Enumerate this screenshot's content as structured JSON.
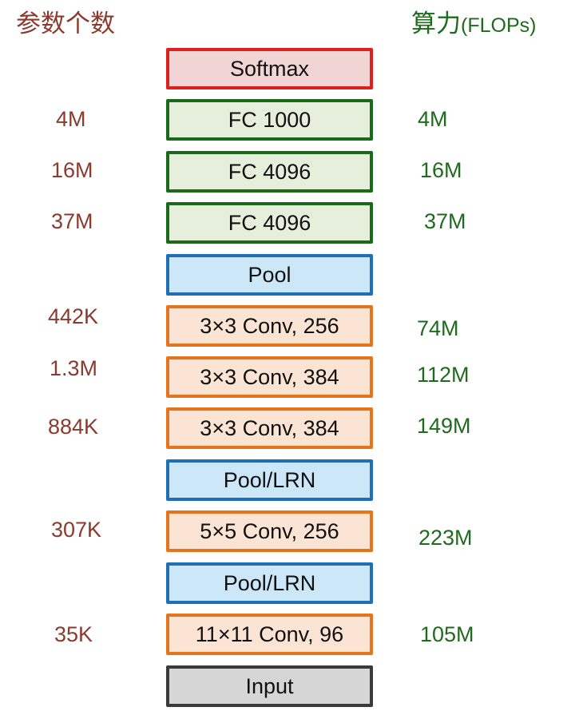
{
  "headers": {
    "params": "参数个数",
    "flops_main": "算力",
    "flops_sub": "(FLOPs)"
  },
  "layers": [
    {
      "label": "Softmax",
      "type": "softmax",
      "params": "",
      "flops": ""
    },
    {
      "label": "FC 1000",
      "type": "fc",
      "params": "4M",
      "flops": "4M"
    },
    {
      "label": "FC 4096",
      "type": "fc",
      "params": "16M",
      "flops": "16M"
    },
    {
      "label": "FC 4096",
      "type": "fc",
      "params": "37M",
      "flops": "37M"
    },
    {
      "label": "Pool",
      "type": "pool",
      "params": "",
      "flops": ""
    },
    {
      "label": "3×3 Conv, 256",
      "type": "conv",
      "params": "442K",
      "flops": "74M"
    },
    {
      "label": "3×3 Conv, 384",
      "type": "conv",
      "params": "1.3M",
      "flops": "112M"
    },
    {
      "label": "3×3 Conv, 384",
      "type": "conv",
      "params": "884K",
      "flops": "149M"
    },
    {
      "label": "Pool/LRN",
      "type": "pool",
      "params": "",
      "flops": ""
    },
    {
      "label": "5×5 Conv, 256",
      "type": "conv",
      "params": "307K",
      "flops": "223M"
    },
    {
      "label": "Pool/LRN",
      "type": "pool",
      "params": "",
      "flops": ""
    },
    {
      "label": "11×11 Conv, 96",
      "type": "conv",
      "params": "35K",
      "flops": "105M"
    },
    {
      "label": "Input",
      "type": "input",
      "params": "",
      "flops": ""
    }
  ],
  "colors": {
    "softmax_border": "#e01e1e",
    "fc_border": "#1a6a1a",
    "pool_border": "#1e6fb5",
    "conv_border": "#e5741c",
    "input_border": "#3a3a3a",
    "params_text": "#8b3a2e",
    "flops_text": "#1e6b1e"
  }
}
